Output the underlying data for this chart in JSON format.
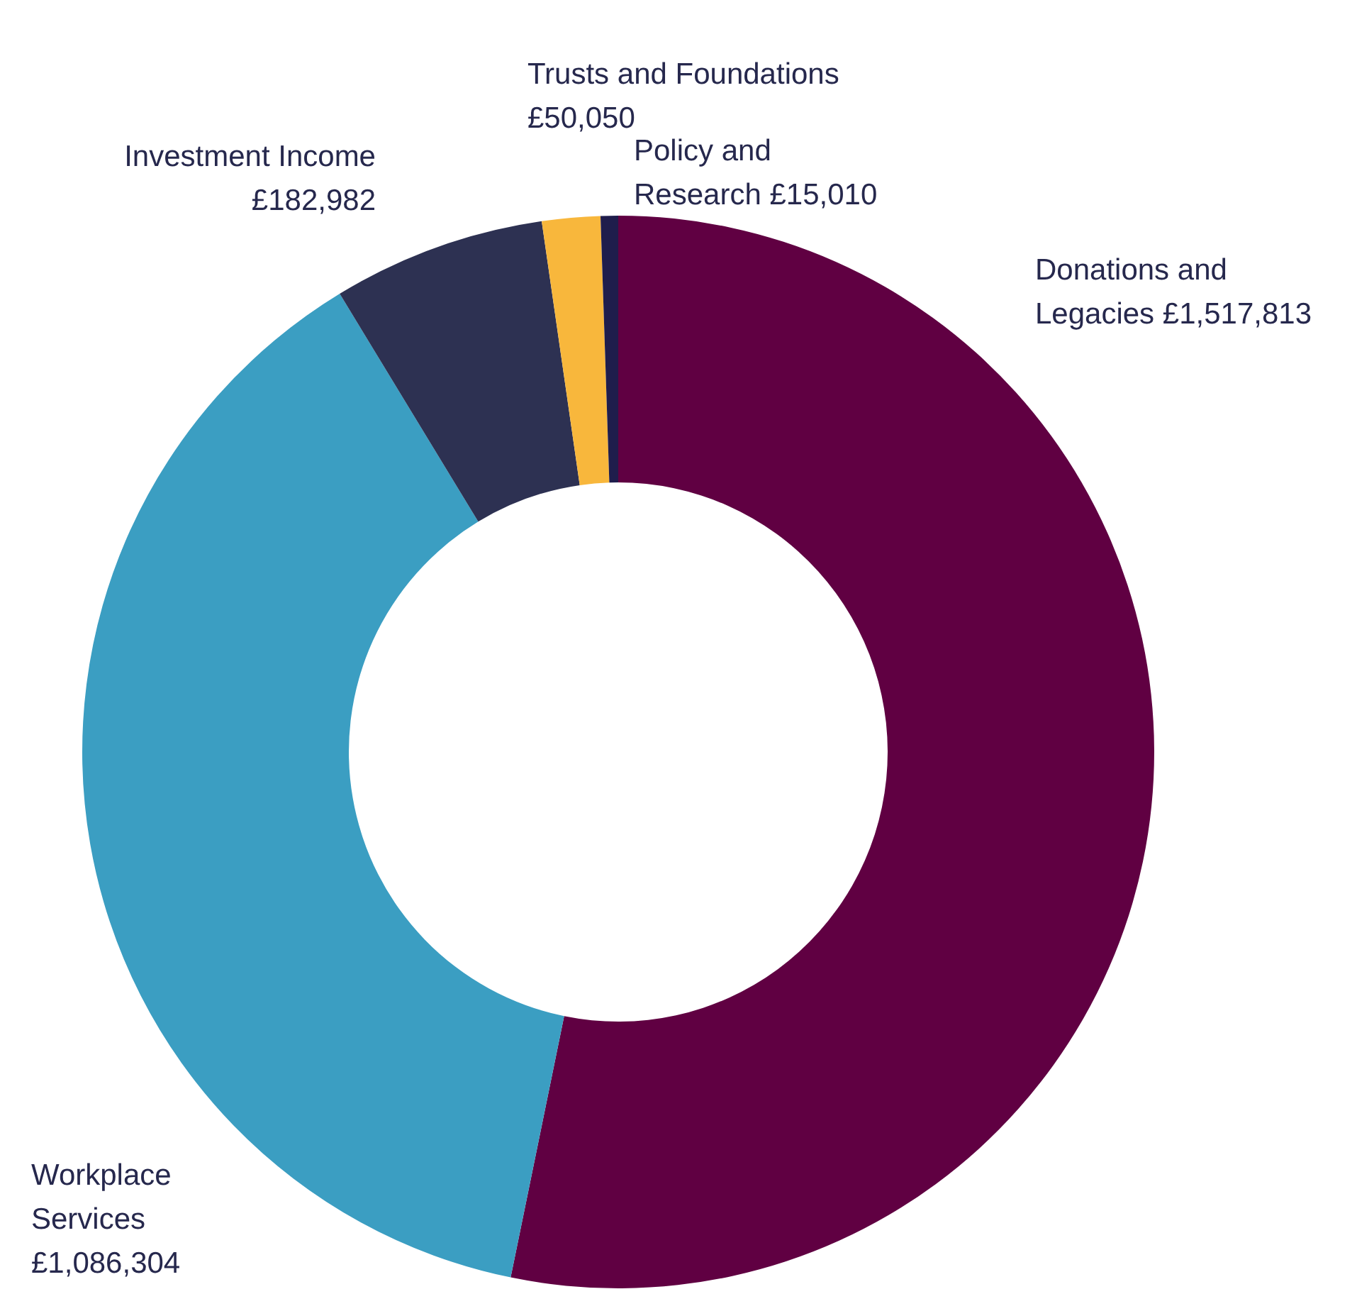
{
  "chart_data": {
    "type": "donut",
    "categories": [
      "Donations and Legacies",
      "Workplace Services",
      "Investment Income",
      "Trusts and Foundations",
      "Policy and Research"
    ],
    "values": [
      1517813,
      1086304,
      182982,
      50050,
      15010
    ],
    "value_labels": [
      "£1,517,813",
      "£1,086,304",
      "£182,982",
      "£50,050",
      "£15,010"
    ],
    "colors": [
      "#600042",
      "#3b9ec2",
      "#2d3152",
      "#f8b73c",
      "#1f1d4c"
    ]
  }
}
